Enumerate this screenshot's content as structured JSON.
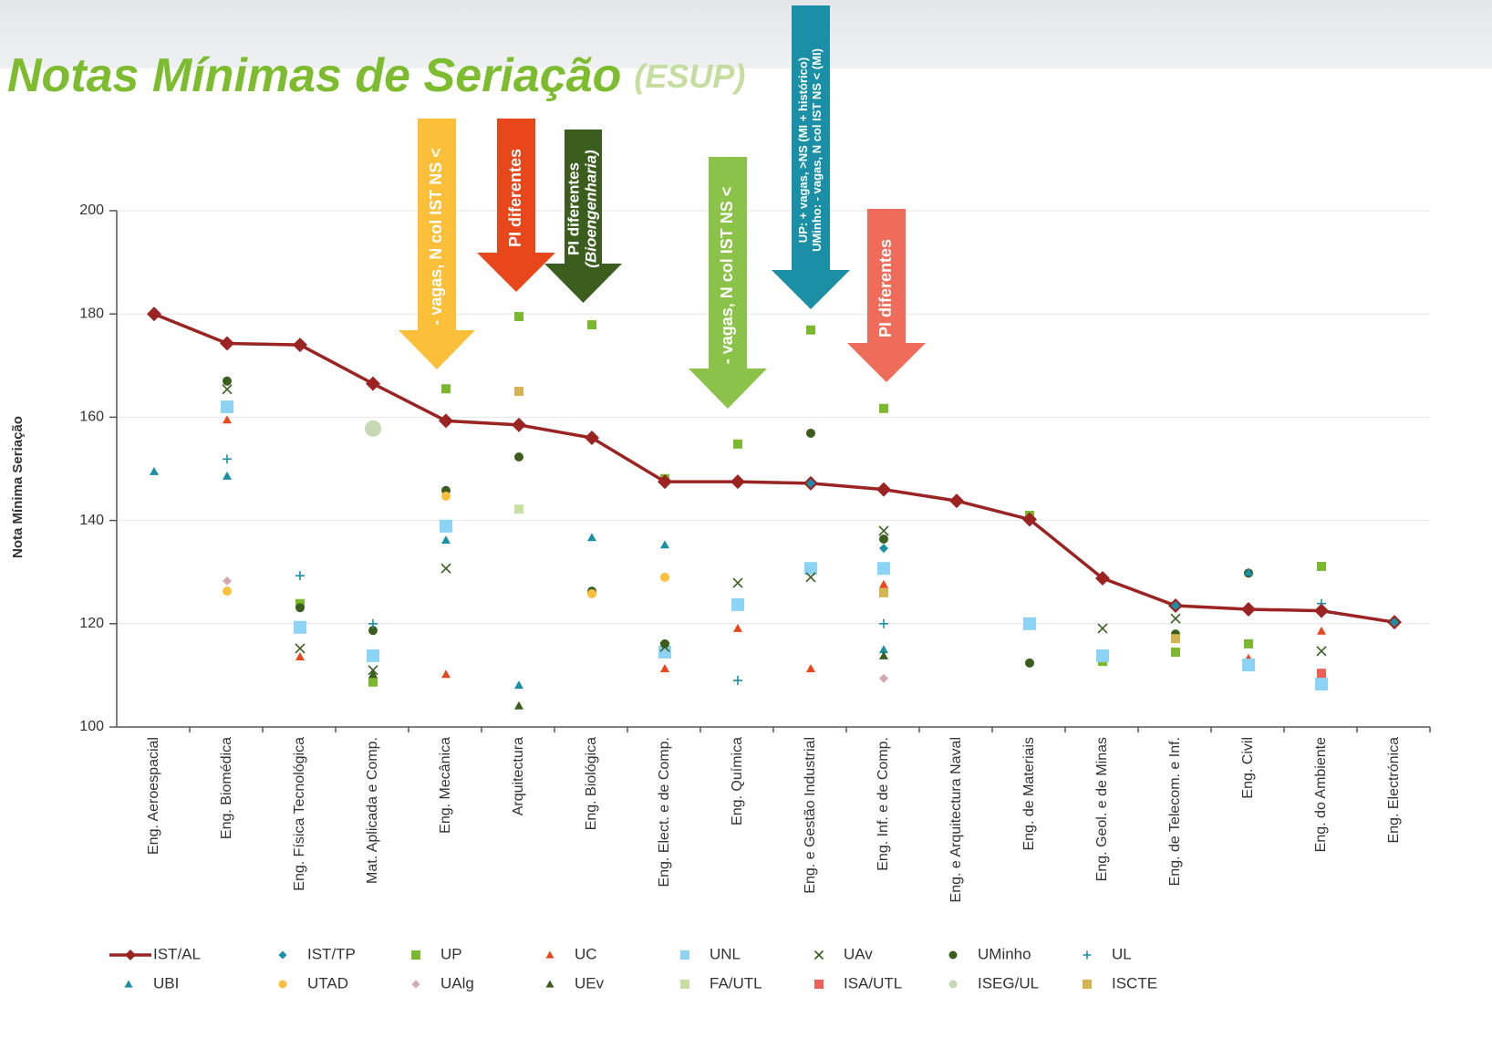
{
  "chart_data": {
    "type": "line",
    "title": "Notas Mínimas de Seriação",
    "subtitle": "(ESUP)",
    "y_label": "Nota Mínima Seriação",
    "categories": [
      "Eng. Aeroespacial",
      "Eng. Biomédica",
      "Eng. Física Tecnológica",
      "Mat. Aplicada e Comp.",
      "Eng. Mecânica",
      "Arquitectura",
      "Eng. Biológica",
      "Eng. Elect. e de Comp.",
      "Eng. Química",
      "Eng. e Gestão Industrial",
      "Eng. Inf. e de Comp.",
      "Eng. e Arquitectura Naval",
      "Eng. de Materiais",
      "Eng. Geol. e de Minas",
      "Eng. de Telecom. e Inf.",
      "Eng. Civil",
      "Eng. do Ambiente",
      "Eng. Electrónica"
    ],
    "ylim": [
      100,
      200
    ],
    "yticks": [
      100,
      120,
      140,
      160,
      180,
      200
    ],
    "grid": true,
    "series": [
      {
        "name": "IST/AL",
        "color": "#9b2423",
        "marker": "diamond",
        "line": true,
        "values": [
          180,
          174.3,
          174,
          166.5,
          159.3,
          158.5,
          156,
          147.5,
          147.5,
          147.2,
          146,
          143.8,
          140.2,
          128.8,
          123.5,
          122.8,
          122.5,
          120.3
        ]
      },
      {
        "name": "IST/TP",
        "color": "#1a8fa6",
        "marker": "diamond",
        "values": [
          null,
          null,
          null,
          null,
          null,
          null,
          null,
          null,
          null,
          147.2,
          134.6,
          null,
          null,
          null,
          123.5,
          null,
          null,
          120.3
        ]
      },
      {
        "name": "UP",
        "color": "#7cb82f",
        "marker": "square",
        "values": [
          null,
          null,
          123.9,
          108.7,
          165.5,
          179.5,
          177.9,
          148.1,
          154.8,
          176.9,
          161.7,
          null,
          141,
          112.7,
          114.5,
          116.1,
          131.1,
          null
        ]
      },
      {
        "name": "UC",
        "color": "#e8471c",
        "marker": "triangle",
        "values": [
          null,
          159.5,
          113.6,
          null,
          110.2,
          null,
          null,
          111.3,
          119.1,
          111.3,
          127.6,
          null,
          null,
          null,
          null,
          113.3,
          118.6,
          null
        ]
      },
      {
        "name": "UNL",
        "color": "#8dd3f5",
        "marker": "square",
        "values": [
          null,
          162,
          119.3,
          113.8,
          138.9,
          null,
          null,
          114.5,
          123.7,
          130.7,
          130.7,
          null,
          120,
          113.8,
          null,
          112,
          108.3,
          null
        ]
      },
      {
        "name": "UAv",
        "color": "#3b5e1f",
        "marker": "x",
        "values": [
          null,
          165.4,
          115.2,
          111,
          130.7,
          null,
          null,
          115.5,
          127.9,
          129,
          138,
          null,
          null,
          119.1,
          121,
          null,
          114.7,
          null
        ]
      },
      {
        "name": "UMinho",
        "color": "#3b5e1f",
        "marker": "circle",
        "values": [
          null,
          167,
          123.1,
          118.7,
          145.8,
          152.3,
          126.3,
          116.1,
          null,
          156.9,
          136.4,
          null,
          112.4,
          null,
          118,
          129.8,
          null,
          null
        ]
      },
      {
        "name": "UL",
        "color": "#1a8fa6",
        "marker": "plus",
        "values": [
          null,
          151.9,
          129.3,
          120,
          null,
          null,
          null,
          null,
          109,
          null,
          120,
          null,
          null,
          null,
          null,
          null,
          123.9,
          null
        ]
      },
      {
        "name": "UBI",
        "color": "#1a8fa6",
        "marker": "triangle",
        "values": [
          149.5,
          148.6,
          null,
          null,
          136.2,
          108.1,
          136.7,
          135.3,
          null,
          null,
          115,
          null,
          null,
          null,
          null,
          130,
          null,
          null
        ]
      },
      {
        "name": "UTAD",
        "color": "#fbbf3a",
        "marker": "circle",
        "values": [
          null,
          126.3,
          null,
          null,
          144.7,
          null,
          125.8,
          129,
          null,
          null,
          null,
          null,
          null,
          null,
          null,
          null,
          null,
          null
        ]
      },
      {
        "name": "UAlg",
        "color": "#d4aab0",
        "marker": "diamond",
        "values": [
          null,
          128.3,
          null,
          null,
          null,
          null,
          null,
          null,
          null,
          null,
          109.4,
          null,
          null,
          null,
          null,
          null,
          null,
          null
        ]
      },
      {
        "name": "UEv",
        "color": "#3b5e1f",
        "marker": "triangle",
        "values": [
          null,
          null,
          null,
          110.2,
          null,
          104.1,
          null,
          null,
          null,
          null,
          113.8,
          null,
          null,
          null,
          null,
          null,
          null,
          null
        ]
      },
      {
        "name": "FA/UTL",
        "color": "#c5e0a0",
        "marker": "square",
        "values": [
          null,
          null,
          null,
          null,
          null,
          142.2,
          null,
          null,
          null,
          null,
          null,
          null,
          null,
          null,
          null,
          null,
          null,
          null
        ]
      },
      {
        "name": "ISA/UTL",
        "color": "#ee6055",
        "marker": "square",
        "values": [
          null,
          null,
          null,
          null,
          null,
          null,
          null,
          null,
          null,
          null,
          null,
          null,
          null,
          null,
          null,
          null,
          110.4,
          null
        ]
      },
      {
        "name": "ISEG/UL",
        "color": "#c6d9b4",
        "marker": "circle",
        "values": [
          null,
          null,
          null,
          157.8,
          null,
          null,
          null,
          null,
          null,
          null,
          null,
          null,
          null,
          null,
          null,
          null,
          null,
          null
        ]
      },
      {
        "name": "ISCTE",
        "color": "#d4b452",
        "marker": "square",
        "values": [
          null,
          null,
          null,
          null,
          null,
          165,
          null,
          null,
          null,
          null,
          126,
          null,
          null,
          null,
          117.1,
          null,
          null,
          null
        ]
      }
    ],
    "annotations": [
      {
        "lines": [
          "- vagas, N col IST NS <"
        ],
        "color": "#fbbf3a"
      },
      {
        "lines": [
          "PI diferentes"
        ],
        "color": "#e8471c"
      },
      {
        "lines": [
          "PI diferentes",
          "(Bioengenharia)"
        ],
        "color": "#3b5e1f"
      },
      {
        "lines": [
          "- vagas, N col IST NS <"
        ],
        "color": "#8bc34a"
      },
      {
        "lines": [
          "UP: + vagas, >NS (MI + histórico)",
          "UMinho: - vagas, N col IST NS < (MI)"
        ],
        "color": "#1a8fa6"
      },
      {
        "lines": [
          "PI diferentes"
        ],
        "color": "#ef6b5a"
      }
    ]
  }
}
